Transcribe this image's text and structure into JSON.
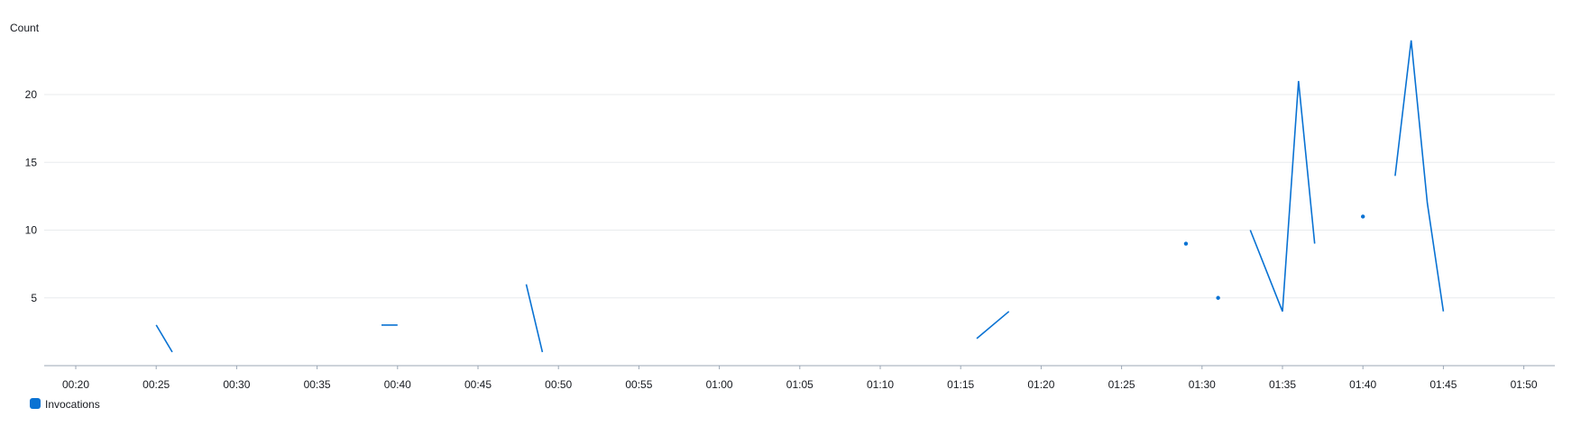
{
  "chart_data": {
    "type": "line",
    "ylabel": "Count",
    "xlabel": "",
    "title": "",
    "x_tick_labels": [
      "00:20",
      "00:25",
      "00:30",
      "00:35",
      "00:40",
      "00:45",
      "00:50",
      "00:55",
      "01:00",
      "01:05",
      "01:10",
      "01:15",
      "01:20",
      "01:25",
      "01:30",
      "01:35",
      "01:40",
      "01:45",
      "01:50"
    ],
    "y_tick_labels": [
      "5",
      "10",
      "15",
      "20"
    ],
    "y_ticks": [
      5,
      10,
      15,
      20
    ],
    "ylim": [
      0,
      27
    ],
    "xlim": [
      "00:20",
      "01:50"
    ],
    "grid": "horizontal",
    "legend_position": "bottom-left",
    "series": [
      {
        "name": "Invocations",
        "color": "#0972d3",
        "segments": [
          [
            {
              "x": "00:25",
              "y": 3
            },
            {
              "x": "00:26",
              "y": 1
            }
          ],
          [
            {
              "x": "00:39",
              "y": 3
            },
            {
              "x": "00:40",
              "y": 3
            }
          ],
          [
            {
              "x": "00:48",
              "y": 6
            },
            {
              "x": "00:49",
              "y": 1
            }
          ],
          [
            {
              "x": "01:16",
              "y": 2
            },
            {
              "x": "01:18",
              "y": 4
            }
          ],
          [
            {
              "x": "01:29",
              "y": 9
            }
          ],
          [
            {
              "x": "01:31",
              "y": 5
            }
          ],
          [
            {
              "x": "01:33",
              "y": 10
            },
            {
              "x": "01:35",
              "y": 4
            },
            {
              "x": "01:36",
              "y": 21
            },
            {
              "x": "01:37",
              "y": 9
            }
          ],
          [
            {
              "x": "01:40",
              "y": 11
            }
          ],
          [
            {
              "x": "01:42",
              "y": 14
            },
            {
              "x": "01:43",
              "y": 24
            },
            {
              "x": "01:44",
              "y": 12
            },
            {
              "x": "01:45",
              "y": 4
            }
          ]
        ]
      }
    ]
  }
}
